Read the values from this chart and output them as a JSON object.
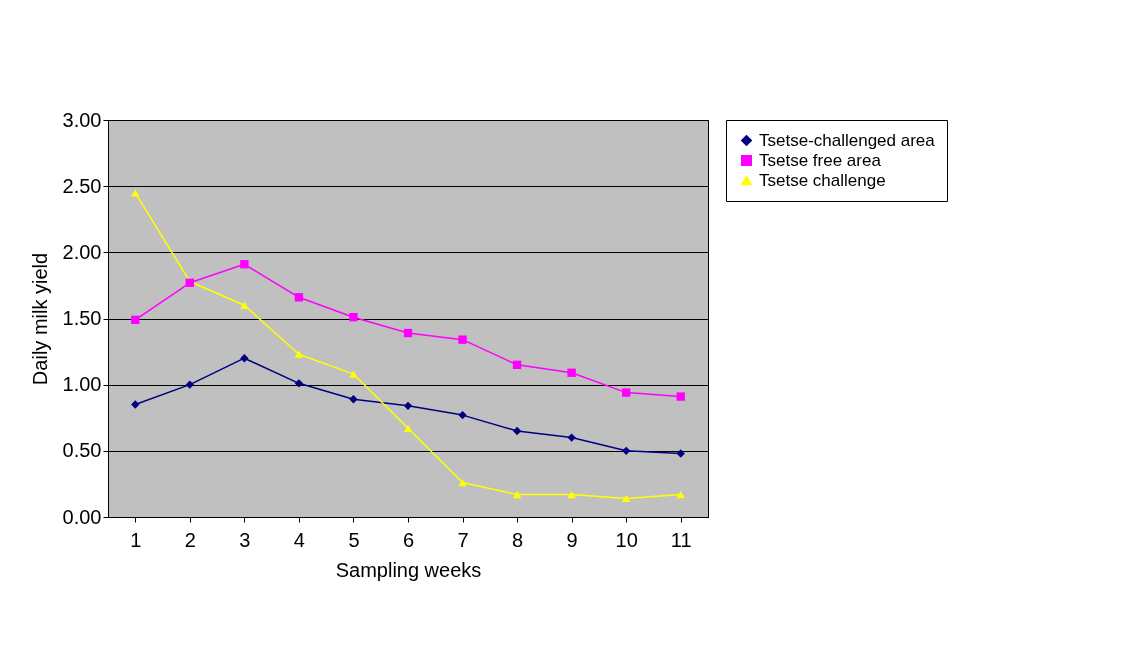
{
  "chart_data": {
    "type": "line",
    "xlabel": "Sampling weeks",
    "ylabel": "Daily milk yield",
    "categories": [
      "1",
      "2",
      "3",
      "4",
      "5",
      "6",
      "7",
      "8",
      "9",
      "10",
      "11"
    ],
    "series": [
      {
        "name": "Tsetse-challenged area",
        "color": "#000080",
        "marker": "diamond",
        "values": [
          0.85,
          1.0,
          1.2,
          1.01,
          0.89,
          0.84,
          0.77,
          0.65,
          0.6,
          0.5,
          0.48
        ]
      },
      {
        "name": "Tsetse free area",
        "color": "#ff00ff",
        "marker": "square",
        "values": [
          1.49,
          1.77,
          1.91,
          1.66,
          1.51,
          1.39,
          1.34,
          1.15,
          1.09,
          0.94,
          0.91
        ]
      },
      {
        "name": "Tsetse challenge",
        "color": "#ffff00",
        "marker": "triangle",
        "values": [
          2.45,
          1.78,
          1.6,
          1.23,
          1.08,
          0.67,
          0.26,
          0.17,
          0.17,
          0.14,
          0.17
        ]
      }
    ],
    "ylim": [
      0,
      3
    ],
    "yticks": [
      {
        "value": 0,
        "label": "0.00"
      },
      {
        "value": 0.5,
        "label": "0.50"
      },
      {
        "value": 1,
        "label": "1.00"
      },
      {
        "value": 1.5,
        "label": "1.50"
      },
      {
        "value": 2,
        "label": "2.00"
      },
      {
        "value": 2.5,
        "label": "2.50"
      },
      {
        "value": 3,
        "label": "3.00"
      }
    ],
    "grid": "y",
    "legend": "right"
  }
}
